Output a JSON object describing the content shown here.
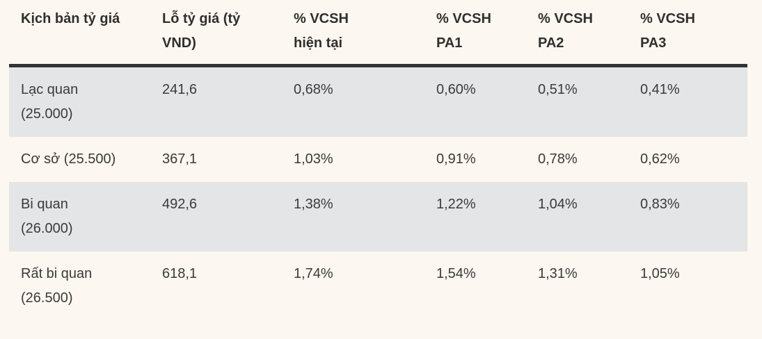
{
  "colors": {
    "page_background": "#FCF7F0",
    "stripe_row_background": "#E4E5E6",
    "header_rule": "#333333",
    "text": "#3A3A3A"
  },
  "table": {
    "headers": [
      {
        "lines": [
          "Kịch bản tỷ giá"
        ]
      },
      {
        "lines": [
          "Lỗ tỷ giá (tỷ",
          "VND)"
        ]
      },
      {
        "lines": [
          "% VCSH",
          "hiện tại"
        ]
      },
      {
        "lines": [
          "% VCSH",
          "PA1"
        ]
      },
      {
        "lines": [
          "% VCSH",
          "PA2"
        ]
      },
      {
        "lines": [
          "% VCSH",
          "PA3"
        ]
      }
    ],
    "rows": [
      {
        "scenario_lines": [
          "Lạc quan",
          "(25.000)"
        ],
        "loss": "241,6",
        "vcsh_current": "0,68%",
        "vcsh_pa1": "0,60%",
        "vcsh_pa2": "0,51%",
        "vcsh_pa3": "0,41%"
      },
      {
        "scenario_lines": [
          "Cơ sở (25.500)"
        ],
        "loss": "367,1",
        "vcsh_current": "1,03%",
        "vcsh_pa1": "0,91%",
        "vcsh_pa2": "0,78%",
        "vcsh_pa3": "0,62%"
      },
      {
        "scenario_lines": [
          "Bi quan",
          "(26.000)"
        ],
        "loss": "492,6",
        "vcsh_current": "1,38%",
        "vcsh_pa1": "1,22%",
        "vcsh_pa2": "1,04%",
        "vcsh_pa3": "0,83%"
      },
      {
        "scenario_lines": [
          "Rất bi quan",
          "(26.500)"
        ],
        "loss": "618,1",
        "vcsh_current": "1,74%",
        "vcsh_pa1": "1,54%",
        "vcsh_pa2": "1,31%",
        "vcsh_pa3": "1,05%"
      }
    ]
  },
  "chart_data": {
    "type": "table",
    "title": "",
    "columns": [
      "Kịch bản tỷ giá",
      "Lỗ tỷ giá (tỷ VND)",
      "% VCSH hiện tại",
      "% VCSH PA1",
      "% VCSH PA2",
      "% VCSH PA3"
    ],
    "rows": [
      [
        "Lạc quan (25.000)",
        "241,6",
        "0,68%",
        "0,60%",
        "0,51%",
        "0,41%"
      ],
      [
        "Cơ sở (25.500)",
        "367,1",
        "1,03%",
        "0,91%",
        "0,78%",
        "0,62%"
      ],
      [
        "Bi quan (26.000)",
        "492,6",
        "1,38%",
        "1,22%",
        "1,04%",
        "0,83%"
      ],
      [
        "Rất bi quan (26.500)",
        "618,1",
        "1,74%",
        "1,54%",
        "1,31%",
        "1,05%"
      ]
    ]
  }
}
